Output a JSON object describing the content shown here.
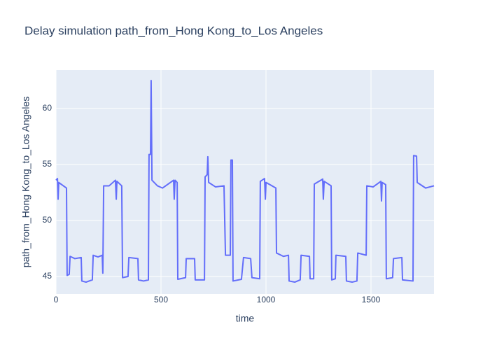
{
  "chart_data": {
    "type": "line",
    "title": "Delay simulation path_from_Hong Kong_to_Los Angeles",
    "x_label": "time",
    "y_label": "path_from_Hong Kong_to_Los Angeles",
    "x": [
      0,
      7,
      10,
      13,
      50,
      53,
      63,
      67,
      90,
      120,
      123,
      143,
      173,
      177,
      200,
      220,
      223,
      227,
      253,
      283,
      287,
      290,
      313,
      317,
      343,
      347,
      390,
      393,
      417,
      440,
      443,
      450,
      453,
      457,
      483,
      507,
      560,
      563,
      567,
      577,
      580,
      617,
      620,
      660,
      663,
      707,
      710,
      720,
      723,
      727,
      760,
      800,
      807,
      830,
      833,
      840,
      843,
      883,
      893,
      927,
      933,
      970,
      973,
      993,
      997,
      1000,
      1047,
      1050,
      1083,
      1107,
      1110,
      1137,
      1163,
      1167,
      1207,
      1210,
      1227,
      1230,
      1270,
      1273,
      1277,
      1310,
      1313,
      1330,
      1333,
      1380,
      1383,
      1410,
      1433,
      1437,
      1477,
      1480,
      1510,
      1547,
      1550,
      1553,
      1570,
      1573,
      1603,
      1607,
      1647,
      1650,
      1700,
      1703,
      1717,
      1720,
      1760,
      1800
    ],
    "series": [
      {
        "color": "#636efa",
        "values": [
          53.6,
          53.75,
          51.9,
          53.4,
          52.9,
          45.1,
          45.2,
          46.8,
          46.6,
          46.7,
          44.6,
          44.5,
          44.7,
          46.9,
          46.75,
          46.9,
          45.3,
          53.1,
          53.1,
          53.6,
          51.9,
          53.5,
          53.1,
          44.9,
          45.0,
          46.7,
          46.6,
          44.7,
          44.6,
          44.7,
          55.9,
          55.9,
          62.5,
          53.6,
          53.1,
          52.9,
          53.6,
          51.9,
          53.6,
          53.4,
          44.75,
          44.9,
          46.6,
          46.6,
          44.7,
          44.7,
          53.9,
          54.1,
          55.7,
          53.4,
          53.0,
          53.1,
          46.9,
          46.9,
          55.4,
          55.4,
          44.6,
          44.75,
          46.7,
          46.6,
          44.9,
          44.8,
          53.5,
          53.75,
          51.9,
          53.4,
          52.9,
          47.1,
          46.8,
          46.9,
          44.6,
          44.5,
          44.7,
          46.9,
          46.8,
          44.8,
          44.8,
          53.25,
          53.7,
          51.9,
          53.5,
          53.1,
          44.7,
          44.8,
          46.9,
          46.8,
          44.6,
          44.5,
          44.6,
          47.1,
          46.9,
          53.1,
          53.0,
          53.5,
          51.75,
          53.4,
          53.2,
          44.8,
          44.9,
          46.6,
          46.7,
          44.7,
          44.6,
          55.8,
          55.75,
          53.4,
          52.9,
          53.1
        ]
      }
    ],
    "xlim": [
      0,
      1800
    ],
    "xticks": [
      0,
      500,
      1000,
      1500
    ],
    "ylim": [
      43.44,
      63.44
    ],
    "yticks": [
      45,
      50,
      55,
      60
    ],
    "grid": true
  }
}
